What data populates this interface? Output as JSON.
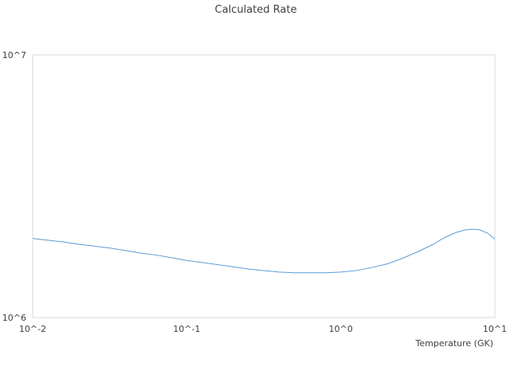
{
  "chart_data": {
    "type": "line",
    "title": "Calculated Rate",
    "xlabel": "Temperature (GK)",
    "ylabel": "",
    "x_scale": "log",
    "y_scale": "log",
    "xlim": [
      0.01,
      10
    ],
    "ylim": [
      1000000,
      10000000
    ],
    "x_tick_labels": [
      "10^-2",
      "10^-1",
      "10^0",
      "10^1"
    ],
    "y_tick_labels": [
      "10^6",
      "10^7"
    ],
    "grid": false,
    "legend": "none",
    "colors": {
      "line": "#5b9bd5",
      "frame": "#d9d9d9",
      "text": "#404040"
    },
    "series": [
      {
        "x": [
          0.01,
          0.0126,
          0.0158,
          0.02,
          0.0251,
          0.0316,
          0.0398,
          0.0501,
          0.0631,
          0.0794,
          0.1,
          0.126,
          0.158,
          0.2,
          0.251,
          0.316,
          0.398,
          0.501,
          0.631,
          0.794,
          1.0,
          1.26,
          1.58,
          2.0,
          2.51,
          3.16,
          3.98,
          4.47,
          5.01,
          5.62,
          6.31,
          7.08,
          7.94,
          8.91,
          10.0
        ],
        "y": [
          2000000,
          1970000,
          1940000,
          1900000,
          1870000,
          1840000,
          1800000,
          1760000,
          1730000,
          1690000,
          1650000,
          1620000,
          1590000,
          1560000,
          1530000,
          1510000,
          1490000,
          1480000,
          1480000,
          1480000,
          1490000,
          1510000,
          1550000,
          1600000,
          1680000,
          1780000,
          1900000,
          1980000,
          2050000,
          2110000,
          2150000,
          2170000,
          2160000,
          2100000,
          1990000
        ]
      }
    ]
  }
}
